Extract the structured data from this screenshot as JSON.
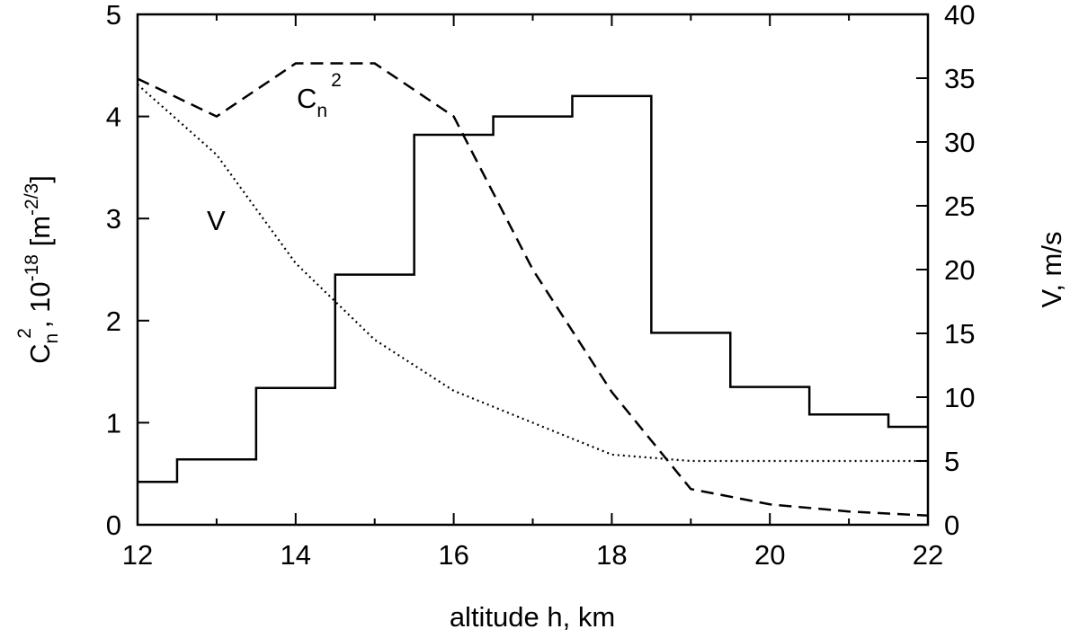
{
  "chart_data": {
    "type": "line",
    "xlabel": "altitude h, km",
    "ylabel_left": {
      "base": "C",
      "sub": "n",
      "sup": "2",
      "rest": ", 10",
      "exp": "-18",
      "unit_open": " [m",
      "unit_exp": "-2/3",
      "unit_close": "]"
    },
    "ylabel_right": "V, m/s",
    "xlim": [
      12,
      22
    ],
    "ylim_left": [
      0,
      5
    ],
    "ylim_right": [
      0,
      40
    ],
    "x_ticks": [
      "12",
      "14",
      "16",
      "18",
      "20",
      "22"
    ],
    "y_left_ticks": [
      "0",
      "1",
      "2",
      "3",
      "4",
      "5"
    ],
    "y_right_ticks": [
      "0",
      "5",
      "10",
      "15",
      "20",
      "25",
      "30",
      "35",
      "40"
    ],
    "annotations": {
      "cn2": {
        "base": "C",
        "sub": "n",
        "sup": "2"
      },
      "v": "V"
    },
    "series": [
      {
        "style": "solid-step",
        "axis": "left",
        "x": [
          12.0,
          12.5,
          13.5,
          14.5,
          15.5,
          16.5,
          17.5,
          18.5,
          19.5,
          20.5,
          21.5,
          22.0
        ],
        "y": [
          0.42,
          0.64,
          1.34,
          2.45,
          3.82,
          4.0,
          4.2,
          1.88,
          1.35,
          1.08,
          0.96,
          0.96
        ]
      },
      {
        "style": "dashed",
        "axis": "left",
        "x": [
          12,
          13,
          14,
          15,
          16,
          17,
          18,
          19,
          20,
          21,
          22
        ],
        "y": [
          4.37,
          4.0,
          4.52,
          4.52,
          4.0,
          2.5,
          1.3,
          0.35,
          0.2,
          0.13,
          0.09
        ]
      },
      {
        "style": "dotted",
        "axis": "right",
        "x": [
          12,
          13,
          14,
          15,
          16,
          17,
          18,
          19,
          20,
          21,
          22
        ],
        "y": [
          34.5,
          29,
          20.5,
          14.5,
          10.5,
          8,
          5.5,
          5,
          5,
          5,
          5
        ]
      }
    ]
  }
}
